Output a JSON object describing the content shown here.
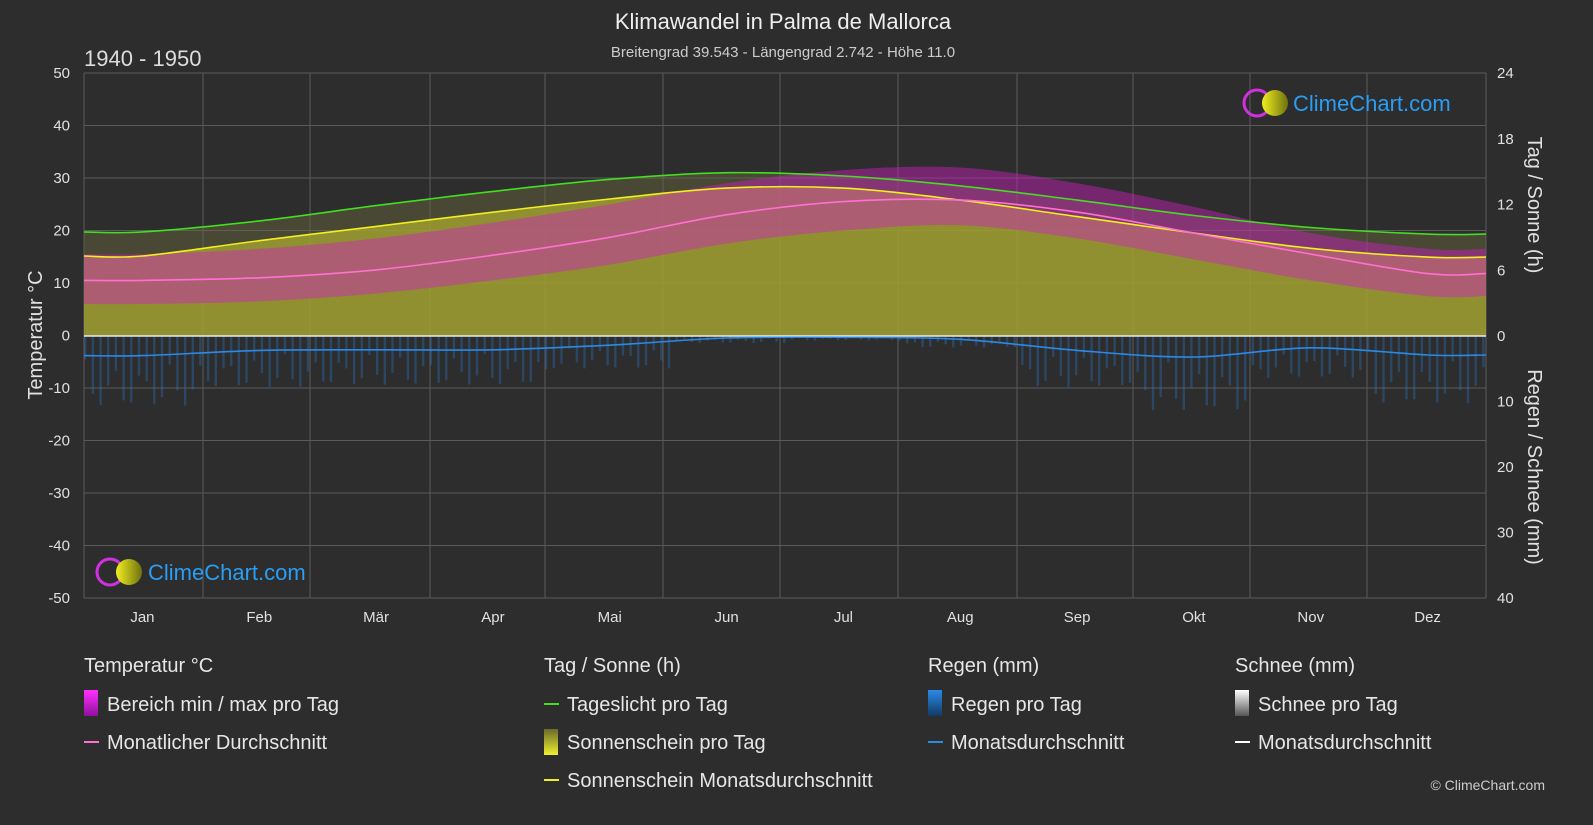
{
  "title": "Klimawandel in Palma de Mallorca",
  "subtitle": "Breitengrad 39.543 - Längengrad 2.742 - Höhe 11.0",
  "period": "1940 - 1950",
  "copyright": "© ClimeChart.com",
  "brand": "ClimeChart.com",
  "colors": {
    "background": "#2d2d2d",
    "grid": "#5a5a5a",
    "daylight": "#44dd22",
    "sunshine_fill": "#a8a830",
    "sunshine_line": "#f0f020",
    "temp_range": "#d020c0",
    "temp_avg": "#ff70d0",
    "rain": "#2a78c8",
    "rain_avg": "#2a8ae8",
    "snow": "#cccccc",
    "brand_text": "#2a9df4"
  },
  "chart_data": {
    "type": "area",
    "months": [
      "Jan",
      "Feb",
      "Mär",
      "Apr",
      "Mai",
      "Jun",
      "Jul",
      "Aug",
      "Sep",
      "Okt",
      "Nov",
      "Dez"
    ],
    "y_left": {
      "label": "Temperatur °C",
      "range": [
        -50,
        50
      ],
      "ticks": [
        50,
        40,
        30,
        20,
        10,
        0,
        -10,
        -20,
        -30,
        -40,
        -50
      ]
    },
    "y_right_top": {
      "label": "Tag / Sonne (h)",
      "range": [
        0,
        24
      ],
      "ticks": [
        24,
        18,
        12,
        6,
        0
      ]
    },
    "y_right_bottom": {
      "label": "Regen / Schnee (mm)",
      "range": [
        0,
        40
      ],
      "ticks": [
        0,
        10,
        20,
        30,
        40
      ]
    },
    "series": {
      "daylight_hours": [
        9.5,
        10.5,
        11.9,
        13.2,
        14.3,
        14.9,
        14.6,
        13.7,
        12.4,
        11.0,
        9.9,
        9.3
      ],
      "sunshine_hours": [
        7.3,
        8.7,
        10.0,
        11.3,
        12.5,
        13.5,
        13.5,
        12.4,
        10.9,
        9.4,
        8.0,
        7.2
      ],
      "temp_avg_c": [
        10.5,
        11.0,
        12.5,
        15.3,
        18.7,
        23.0,
        25.5,
        25.8,
        23.5,
        19.5,
        15.5,
        11.8
      ],
      "temp_max_c": [
        15.5,
        16.5,
        18.5,
        21.5,
        25.0,
        29.0,
        31.5,
        32.0,
        29.0,
        24.5,
        19.5,
        16.5
      ],
      "temp_min_c": [
        6.0,
        6.5,
        8.0,
        10.5,
        13.5,
        17.5,
        20.0,
        21.0,
        18.5,
        14.5,
        10.5,
        7.5
      ],
      "rain_avg_mm": [
        3.0,
        2.2,
        2.1,
        2.1,
        1.4,
        0.3,
        0.2,
        0.5,
        2.2,
        3.2,
        1.8,
        2.9
      ],
      "snow_avg_mm": [
        0,
        0,
        0,
        0,
        0,
        0,
        0,
        0,
        0,
        0,
        0,
        0
      ]
    },
    "legend": [
      {
        "heading": "Temperatur °C",
        "items": [
          "Bereich min / max pro Tag",
          "Monatlicher Durchschnitt"
        ]
      },
      {
        "heading": "Tag / Sonne (h)",
        "items": [
          "Tageslicht pro Tag",
          "Sonnenschein pro Tag",
          "Sonnenschein Monatsdurchschnitt"
        ]
      },
      {
        "heading": "Regen (mm)",
        "items": [
          "Regen pro Tag",
          "Monatsdurchschnitt"
        ]
      },
      {
        "heading": "Schnee (mm)",
        "items": [
          "Schnee pro Tag",
          "Monatsdurchschnitt"
        ]
      }
    ],
    "legend_placement": "bottom",
    "grid": true
  }
}
